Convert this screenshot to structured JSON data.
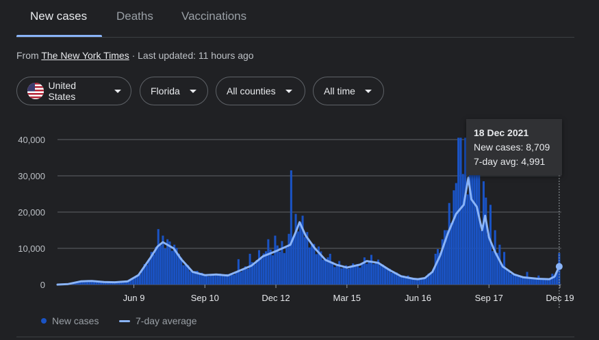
{
  "tabs": [
    {
      "label": "New cases"
    },
    {
      "label": "Deaths"
    },
    {
      "label": "Vaccinations"
    }
  ],
  "source": {
    "prefix": "From",
    "name": "The New York Times",
    "updated": "· Last updated: 11 hours ago"
  },
  "filters": {
    "country": "United States",
    "state": "Florida",
    "county": "All counties",
    "range": "All time"
  },
  "tooltip": {
    "date": "18 Dec 2021",
    "cases": "New cases: 8,709",
    "avg": "7-day avg: 4,991"
  },
  "legend": {
    "cases": "New cases",
    "avg": "7-day average"
  },
  "colors": {
    "bar": "#1a53c4",
    "line": "#8ab4f8",
    "grid": "#5f6368"
  },
  "chart_data": {
    "type": "bar",
    "title": "",
    "xlabel": "",
    "ylabel": "",
    "ylim": [
      0,
      40000
    ],
    "yticks": [
      {
        "value": 0,
        "label": "0"
      },
      {
        "value": 10000,
        "label": "10,000"
      },
      {
        "value": 20000,
        "label": "20,000"
      },
      {
        "value": 30000,
        "label": "30,000"
      },
      {
        "value": 40000,
        "label": "40,000"
      }
    ],
    "xticks": [
      {
        "date": "2020-06-09",
        "label": "Jun 9"
      },
      {
        "date": "2020-09-10",
        "label": "Sep 10"
      },
      {
        "date": "2020-12-12",
        "label": "Dec 12"
      },
      {
        "date": "2021-03-15",
        "label": "Mar 15"
      },
      {
        "date": "2021-06-16",
        "label": "Jun 16"
      },
      {
        "date": "2021-09-17",
        "label": "Sep 17"
      },
      {
        "date": "2021-12-19",
        "label": "Dec 19"
      }
    ],
    "x_range": [
      "2020-03-01",
      "2021-12-19"
    ],
    "series": [
      {
        "name": "7-day average",
        "points": [
          [
            "2020-03-01",
            0
          ],
          [
            "2020-03-15",
            150
          ],
          [
            "2020-04-01",
            900
          ],
          [
            "2020-04-15",
            1000
          ],
          [
            "2020-05-01",
            700
          ],
          [
            "2020-05-15",
            650
          ],
          [
            "2020-06-01",
            900
          ],
          [
            "2020-06-15",
            2600
          ],
          [
            "2020-07-01",
            7500
          ],
          [
            "2020-07-10",
            10500
          ],
          [
            "2020-07-17",
            11700
          ],
          [
            "2020-07-31",
            10000
          ],
          [
            "2020-08-10",
            7000
          ],
          [
            "2020-08-25",
            3500
          ],
          [
            "2020-09-10",
            2600
          ],
          [
            "2020-09-25",
            2800
          ],
          [
            "2020-10-10",
            2500
          ],
          [
            "2020-10-25",
            3800
          ],
          [
            "2020-11-10",
            5200
          ],
          [
            "2020-11-25",
            7800
          ],
          [
            "2020-12-12",
            9200
          ],
          [
            "2020-12-31",
            11000
          ],
          [
            "2021-01-08",
            15000
          ],
          [
            "2021-01-12",
            17200
          ],
          [
            "2021-01-20",
            13500
          ],
          [
            "2021-02-01",
            10000
          ],
          [
            "2021-02-15",
            6800
          ],
          [
            "2021-03-01",
            5500
          ],
          [
            "2021-03-15",
            4700
          ],
          [
            "2021-04-01",
            5500
          ],
          [
            "2021-04-10",
            6500
          ],
          [
            "2021-04-25",
            6000
          ],
          [
            "2021-05-10",
            4000
          ],
          [
            "2021-05-25",
            2300
          ],
          [
            "2021-06-10",
            1600
          ],
          [
            "2021-06-16",
            1500
          ],
          [
            "2021-06-25",
            1800
          ],
          [
            "2021-07-05",
            3500
          ],
          [
            "2021-07-15",
            8000
          ],
          [
            "2021-07-25",
            14000
          ],
          [
            "2021-08-05",
            19500
          ],
          [
            "2021-08-15",
            22000
          ],
          [
            "2021-08-21",
            29500
          ],
          [
            "2021-08-25",
            23500
          ],
          [
            "2021-09-01",
            21500
          ],
          [
            "2021-09-08",
            15000
          ],
          [
            "2021-09-12",
            19000
          ],
          [
            "2021-09-17",
            13000
          ],
          [
            "2021-09-25",
            9000
          ],
          [
            "2021-10-05",
            5000
          ],
          [
            "2021-10-20",
            2800
          ],
          [
            "2021-11-01",
            2000
          ],
          [
            "2021-11-20",
            1600
          ],
          [
            "2021-12-05",
            1500
          ],
          [
            "2021-12-12",
            2200
          ],
          [
            "2021-12-18",
            4991
          ]
        ]
      },
      {
        "name": "New cases",
        "spikes": [
          [
            "2020-07-12",
            15300
          ],
          [
            "2020-07-18",
            13500
          ],
          [
            "2020-07-24",
            12500
          ],
          [
            "2020-07-31",
            11000
          ],
          [
            "2020-08-08",
            8500
          ],
          [
            "2020-09-01",
            3800
          ],
          [
            "2020-10-24",
            7000
          ],
          [
            "2020-11-07",
            8500
          ],
          [
            "2020-11-19",
            9500
          ],
          [
            "2020-11-28",
            9200
          ],
          [
            "2020-12-03",
            12500
          ],
          [
            "2020-12-10",
            13500
          ],
          [
            "2020-12-20",
            12000
          ],
          [
            "2020-12-30",
            14000
          ],
          [
            "2021-01-02",
            31500
          ],
          [
            "2021-01-07",
            19500
          ],
          [
            "2021-01-15",
            19000
          ],
          [
            "2021-01-22",
            14500
          ],
          [
            "2021-02-05",
            10500
          ],
          [
            "2021-02-20",
            8500
          ],
          [
            "2021-03-05",
            6500
          ],
          [
            "2021-04-08",
            7500
          ],
          [
            "2021-04-15",
            8200
          ],
          [
            "2021-05-05",
            4800
          ],
          [
            "2021-06-04",
            2500
          ],
          [
            "2021-07-08",
            8500
          ],
          [
            "2021-07-13",
            9800
          ],
          [
            "2021-07-18",
            12500
          ],
          [
            "2021-07-22",
            15000
          ],
          [
            "2021-07-27",
            22500
          ],
          [
            "2021-08-01",
            26000
          ],
          [
            "2021-08-04",
            28000
          ],
          [
            "2021-08-07",
            40500
          ],
          [
            "2021-08-11",
            40500
          ],
          [
            "2021-08-14",
            30500
          ],
          [
            "2021-08-18",
            40500
          ],
          [
            "2021-08-22",
            33500
          ],
          [
            "2021-08-25",
            35500
          ],
          [
            "2021-08-29",
            31500
          ],
          [
            "2021-09-02",
            31500
          ],
          [
            "2021-09-05",
            30500
          ],
          [
            "2021-09-09",
            28500
          ],
          [
            "2021-09-14",
            24000
          ],
          [
            "2021-09-20",
            22000
          ],
          [
            "2021-09-25",
            15000
          ],
          [
            "2021-09-30",
            11000
          ],
          [
            "2021-10-06",
            9000
          ],
          [
            "2021-11-05",
            3500
          ],
          [
            "2021-11-20",
            2500
          ],
          [
            "2021-12-10",
            3000
          ],
          [
            "2021-12-18",
            8709
          ]
        ]
      }
    ],
    "highlight": {
      "date": "2021-12-18",
      "value": 4991
    }
  }
}
